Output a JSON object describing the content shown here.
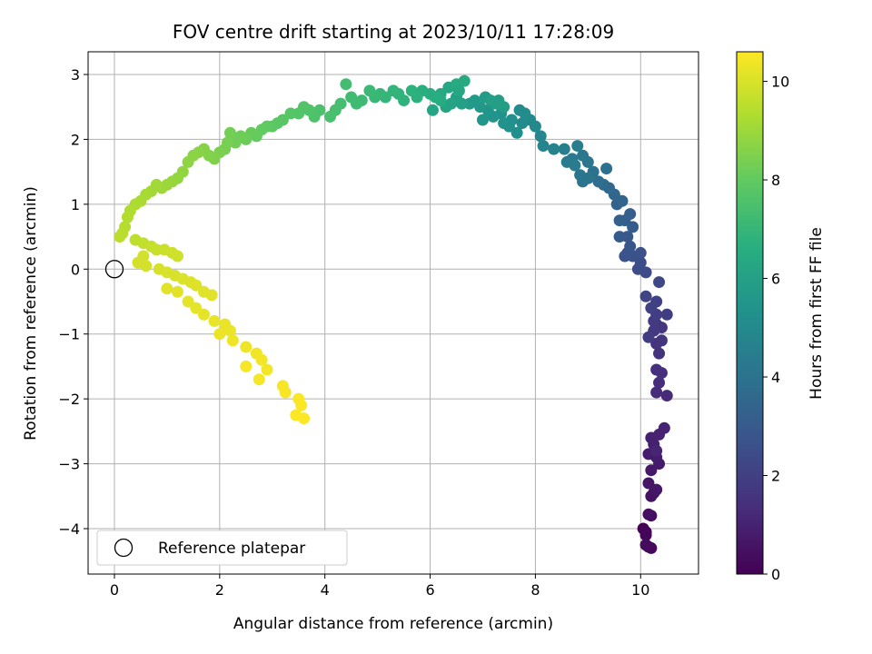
{
  "chart_data": {
    "type": "scatter",
    "title": "FOV centre drift starting at 2023/10/11 17:28:09",
    "xlabel": "Angular distance from reference (arcmin)",
    "ylabel": "Rotation from reference (arcmin)",
    "xlim": [
      -0.5,
      11.1
    ],
    "ylim": [
      -4.7,
      3.35
    ],
    "xticks": [
      0,
      2,
      4,
      6,
      8,
      10
    ],
    "yticks": [
      -4,
      -3,
      -2,
      -1,
      0,
      1,
      2,
      3
    ],
    "grid": true,
    "colormap": "viridis",
    "colorbar": {
      "label": "Hours from first FF file",
      "range": [
        0,
        10.6
      ],
      "ticks": [
        0,
        2,
        4,
        6,
        8,
        10
      ]
    },
    "legend": {
      "position": "lower-left",
      "entries": [
        "Reference platepar"
      ]
    },
    "reference": {
      "label": "Reference platepar",
      "x": 0,
      "y": 0,
      "marker": "open-circle"
    },
    "points": [
      [
        10.05,
        -4.0,
        0.05
      ],
      [
        10.1,
        -4.05,
        0.1
      ],
      [
        10.1,
        -4.1,
        0.15
      ],
      [
        10.15,
        -4.28,
        0.2
      ],
      [
        10.2,
        -4.3,
        0.25
      ],
      [
        10.1,
        -4.25,
        0.3
      ],
      [
        10.2,
        -3.8,
        0.4
      ],
      [
        10.15,
        -3.78,
        0.45
      ],
      [
        10.2,
        -3.5,
        0.5
      ],
      [
        10.25,
        -3.45,
        0.55
      ],
      [
        10.15,
        -3.3,
        0.6
      ],
      [
        10.3,
        -3.4,
        0.65
      ],
      [
        10.2,
        -3.1,
        0.7
      ],
      [
        10.35,
        -3.0,
        0.75
      ],
      [
        10.3,
        -2.9,
        0.8
      ],
      [
        10.15,
        -2.85,
        0.85
      ],
      [
        10.25,
        -2.7,
        0.9
      ],
      [
        10.2,
        -2.6,
        0.95
      ],
      [
        10.35,
        -2.55,
        1.0
      ],
      [
        10.45,
        -2.45,
        1.05
      ],
      [
        10.3,
        -2.8,
        1.1
      ],
      [
        10.5,
        -1.95,
        1.25
      ],
      [
        10.3,
        -1.9,
        1.3
      ],
      [
        10.35,
        -1.75,
        1.35
      ],
      [
        10.4,
        -1.6,
        1.4
      ],
      [
        10.3,
        -1.55,
        1.45
      ],
      [
        10.35,
        -1.3,
        1.5
      ],
      [
        10.3,
        -1.15,
        1.55
      ],
      [
        10.4,
        -1.1,
        1.6
      ],
      [
        10.4,
        -0.9,
        1.65
      ],
      [
        10.3,
        -0.85,
        1.7
      ],
      [
        10.25,
        -0.95,
        1.75
      ],
      [
        10.25,
        -0.8,
        1.8
      ],
      [
        10.15,
        -1.05,
        1.85
      ],
      [
        10.5,
        -0.7,
        1.9
      ],
      [
        10.3,
        -0.7,
        1.95
      ],
      [
        10.2,
        -0.6,
        2.0
      ],
      [
        10.3,
        -0.5,
        2.05
      ],
      [
        10.1,
        -0.42,
        2.1
      ],
      [
        10.35,
        -0.2,
        2.3
      ],
      [
        10.1,
        -0.05,
        2.4
      ],
      [
        9.95,
        0.0,
        2.45
      ],
      [
        10.0,
        0.1,
        2.5
      ],
      [
        9.85,
        0.2,
        2.6
      ],
      [
        10.0,
        0.25,
        2.65
      ],
      [
        9.75,
        0.25,
        2.7
      ],
      [
        9.7,
        0.2,
        2.75
      ],
      [
        9.8,
        0.35,
        2.8
      ],
      [
        9.75,
        0.5,
        2.9
      ],
      [
        9.6,
        0.5,
        3.0
      ],
      [
        9.85,
        0.65,
        3.05
      ],
      [
        9.7,
        0.75,
        3.15
      ],
      [
        9.8,
        0.85,
        3.2
      ],
      [
        9.6,
        0.75,
        3.25
      ],
      [
        9.55,
        1.0,
        3.35
      ],
      [
        9.65,
        1.05,
        3.4
      ],
      [
        9.5,
        1.15,
        3.5
      ],
      [
        9.4,
        1.25,
        3.6
      ],
      [
        9.3,
        1.3,
        3.7
      ],
      [
        9.2,
        1.35,
        3.8
      ],
      [
        9.35,
        1.55,
        3.85
      ],
      [
        9.1,
        1.5,
        3.95
      ],
      [
        9.0,
        1.4,
        4.0
      ],
      [
        8.9,
        1.35,
        4.05
      ],
      [
        8.85,
        1.45,
        4.1
      ],
      [
        9.0,
        1.65,
        4.15
      ],
      [
        8.9,
        1.75,
        4.2
      ],
      [
        8.7,
        1.7,
        4.3
      ],
      [
        8.75,
        1.6,
        4.35
      ],
      [
        8.6,
        1.65,
        4.4
      ],
      [
        8.8,
        1.9,
        4.5
      ],
      [
        8.55,
        1.85,
        4.55
      ],
      [
        8.35,
        1.85,
        4.65
      ],
      [
        8.15,
        1.9,
        4.75
      ],
      [
        8.1,
        2.05,
        4.85
      ],
      [
        8.0,
        2.2,
        4.95
      ],
      [
        7.9,
        2.3,
        5.0
      ],
      [
        7.75,
        2.25,
        5.05
      ],
      [
        7.8,
        2.4,
        5.1
      ],
      [
        7.7,
        2.45,
        5.15
      ],
      [
        7.55,
        2.3,
        5.2
      ],
      [
        7.65,
        2.1,
        5.25
      ],
      [
        7.5,
        2.2,
        5.3
      ],
      [
        7.4,
        2.25,
        5.35
      ],
      [
        7.35,
        2.4,
        5.4
      ],
      [
        7.2,
        2.35,
        5.45
      ],
      [
        7.1,
        2.45,
        5.5
      ],
      [
        7.0,
        2.3,
        5.55
      ],
      [
        6.95,
        2.5,
        5.6
      ],
      [
        6.85,
        2.6,
        5.65
      ],
      [
        6.75,
        2.55,
        5.7
      ],
      [
        7.05,
        2.65,
        5.75
      ],
      [
        7.3,
        2.6,
        5.8
      ],
      [
        7.4,
        2.5,
        5.85
      ],
      [
        7.25,
        2.55,
        5.9
      ],
      [
        7.15,
        2.6,
        5.95
      ],
      [
        6.6,
        2.55,
        6.0
      ],
      [
        6.5,
        2.65,
        6.05
      ],
      [
        6.4,
        2.55,
        6.1
      ],
      [
        6.3,
        2.5,
        6.15
      ],
      [
        6.05,
        2.45,
        6.2
      ],
      [
        6.55,
        2.75,
        6.25
      ],
      [
        6.35,
        2.8,
        6.3
      ],
      [
        6.2,
        2.7,
        6.35
      ],
      [
        6.5,
        2.85,
        6.4
      ],
      [
        6.65,
        2.9,
        6.45
      ],
      [
        6.2,
        2.6,
        6.5
      ],
      [
        6.1,
        2.65,
        6.55
      ],
      [
        6.0,
        2.7,
        6.6
      ],
      [
        5.85,
        2.75,
        6.65
      ],
      [
        5.75,
        2.65,
        6.7
      ],
      [
        5.65,
        2.75,
        6.75
      ],
      [
        5.5,
        2.6,
        6.8
      ],
      [
        5.4,
        2.7,
        6.85
      ],
      [
        5.3,
        2.75,
        6.9
      ],
      [
        5.15,
        2.65,
        6.95
      ],
      [
        5.05,
        2.7,
        7.0
      ],
      [
        4.95,
        2.65,
        7.05
      ],
      [
        4.85,
        2.75,
        7.1
      ],
      [
        4.7,
        2.6,
        7.15
      ],
      [
        4.6,
        2.55,
        7.2
      ],
      [
        4.5,
        2.65,
        7.25
      ],
      [
        4.4,
        2.85,
        7.3
      ],
      [
        4.3,
        2.55,
        7.35
      ],
      [
        4.2,
        2.45,
        7.4
      ],
      [
        4.1,
        2.35,
        7.45
      ],
      [
        3.9,
        2.45,
        7.5
      ],
      [
        3.8,
        2.35,
        7.55
      ],
      [
        3.7,
        2.45,
        7.6
      ],
      [
        3.6,
        2.5,
        7.65
      ],
      [
        3.5,
        2.4,
        7.7
      ],
      [
        3.35,
        2.4,
        7.75
      ],
      [
        3.2,
        2.3,
        7.8
      ],
      [
        3.1,
        2.25,
        7.85
      ],
      [
        3.0,
        2.2,
        7.9
      ],
      [
        2.9,
        2.2,
        7.95
      ],
      [
        2.8,
        2.15,
        8.0
      ],
      [
        2.7,
        2.05,
        8.05
      ],
      [
        2.6,
        2.1,
        8.1
      ],
      [
        2.5,
        2.0,
        8.15
      ],
      [
        2.4,
        2.05,
        8.2
      ],
      [
        2.3,
        1.95,
        8.25
      ],
      [
        2.2,
        2.1,
        8.3
      ],
      [
        2.15,
        1.95,
        8.35
      ],
      [
        2.1,
        1.85,
        8.4
      ],
      [
        2.0,
        1.8,
        8.45
      ],
      [
        1.9,
        1.7,
        8.5
      ],
      [
        1.8,
        1.75,
        8.55
      ],
      [
        1.7,
        1.85,
        8.6
      ],
      [
        1.6,
        1.8,
        8.65
      ],
      [
        1.5,
        1.75,
        8.7
      ],
      [
        1.4,
        1.65,
        8.75
      ],
      [
        1.3,
        1.5,
        8.8
      ],
      [
        1.2,
        1.4,
        8.85
      ],
      [
        1.1,
        1.35,
        8.9
      ],
      [
        1.0,
        1.3,
        8.95
      ],
      [
        0.9,
        1.25,
        9.0
      ],
      [
        0.8,
        1.3,
        9.05
      ],
      [
        0.7,
        1.2,
        9.1
      ],
      [
        0.6,
        1.15,
        9.15
      ],
      [
        0.5,
        1.05,
        9.2
      ],
      [
        0.4,
        1.0,
        9.25
      ],
      [
        0.3,
        0.9,
        9.3
      ],
      [
        0.25,
        0.8,
        9.35
      ],
      [
        0.2,
        0.65,
        9.4
      ],
      [
        0.15,
        0.55,
        9.45
      ],
      [
        0.1,
        0.5,
        9.5
      ],
      [
        0.4,
        0.45,
        9.55
      ],
      [
        0.55,
        0.4,
        9.6
      ],
      [
        0.7,
        0.35,
        9.65
      ],
      [
        0.8,
        0.3,
        9.7
      ],
      [
        0.95,
        0.3,
        9.75
      ],
      [
        1.1,
        0.25,
        9.8
      ],
      [
        1.2,
        0.2,
        9.85
      ],
      [
        0.55,
        0.2,
        9.88
      ],
      [
        0.45,
        0.1,
        9.9
      ],
      [
        0.6,
        0.05,
        9.92
      ],
      [
        0.85,
        0.0,
        9.95
      ],
      [
        1.0,
        -0.05,
        9.97
      ],
      [
        1.15,
        -0.1,
        10.0
      ],
      [
        1.3,
        -0.15,
        10.02
      ],
      [
        1.45,
        -0.2,
        10.05
      ],
      [
        1.55,
        -0.25,
        10.07
      ],
      [
        1.7,
        -0.35,
        10.1
      ],
      [
        1.85,
        -0.4,
        10.12
      ],
      [
        1.0,
        -0.3,
        10.14
      ],
      [
        1.2,
        -0.35,
        10.16
      ],
      [
        1.4,
        -0.5,
        10.18
      ],
      [
        1.55,
        -0.6,
        10.2
      ],
      [
        1.7,
        -0.7,
        10.22
      ],
      [
        1.9,
        -0.8,
        10.25
      ],
      [
        2.1,
        -0.85,
        10.27
      ],
      [
        2.2,
        -0.95,
        10.3
      ],
      [
        2.0,
        -1.0,
        10.32
      ],
      [
        2.25,
        -1.1,
        10.35
      ],
      [
        2.5,
        -1.2,
        10.37
      ],
      [
        2.7,
        -1.3,
        10.4
      ],
      [
        2.8,
        -1.4,
        10.42
      ],
      [
        2.9,
        -1.55,
        10.44
      ],
      [
        2.75,
        -1.7,
        10.46
      ],
      [
        2.5,
        -1.5,
        10.48
      ],
      [
        3.2,
        -1.8,
        10.5
      ],
      [
        3.25,
        -1.9,
        10.52
      ],
      [
        3.5,
        -2.0,
        10.54
      ],
      [
        3.55,
        -2.1,
        10.56
      ],
      [
        3.6,
        -2.3,
        10.58
      ],
      [
        3.45,
        -2.25,
        10.6
      ]
    ]
  }
}
